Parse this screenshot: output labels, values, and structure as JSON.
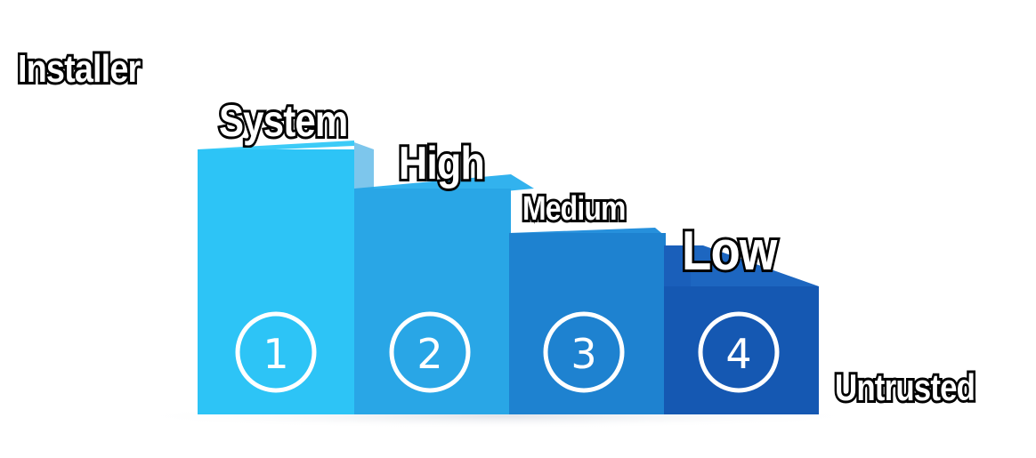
{
  "labels": {
    "installer": "Installer",
    "system": "System",
    "high": "High",
    "medium": "Medium",
    "low": "Low",
    "untrusted": "Untrusted"
  },
  "steps": [
    {
      "number": "1",
      "color": "#2dc4f6",
      "top_color": "#3ccbf7"
    },
    {
      "number": "2",
      "color": "#29a6e6",
      "top_color": "#32b2ee"
    },
    {
      "number": "3",
      "color": "#1e82d0",
      "top_color": "#2690dc"
    },
    {
      "number": "4",
      "color": "#1558b2",
      "top_color": "#1d66c0"
    }
  ]
}
